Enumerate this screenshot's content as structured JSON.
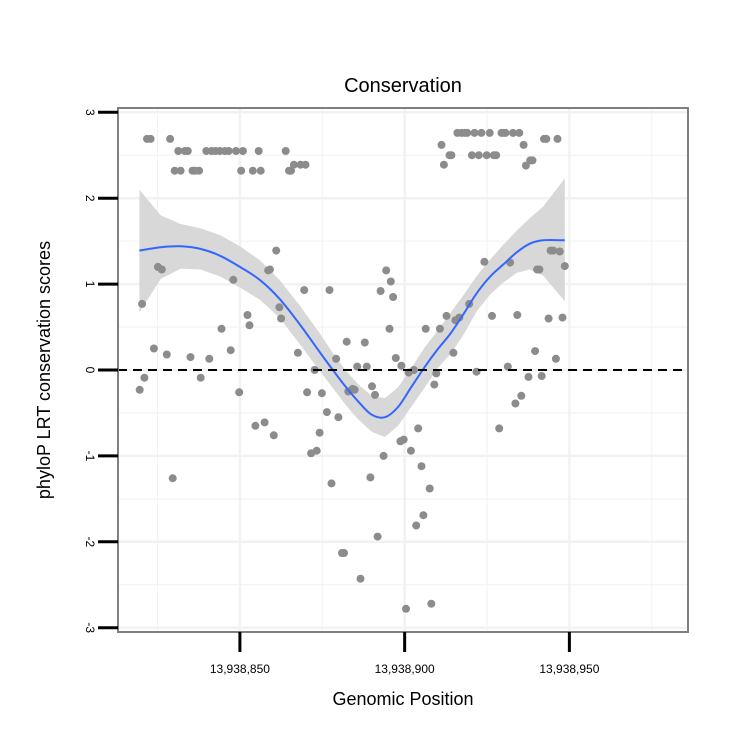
{
  "chart_data": {
    "type": "scatter",
    "title": "Conservation",
    "xlabel": "Genomic Position",
    "ylabel": "phyloP LRT conservation scores",
    "xlim": [
      13938813,
      13938986
    ],
    "ylim": [
      -3.05,
      3.05
    ],
    "x_ticks": [
      {
        "value": 13938850,
        "label": "13,938,850"
      },
      {
        "value": 13938900,
        "label": "13,938,900"
      },
      {
        "value": 13938950,
        "label": "13,938,950"
      }
    ],
    "y_ticks": [
      {
        "value": 3,
        "label": "3"
      },
      {
        "value": 2,
        "label": "2"
      },
      {
        "value": 1,
        "label": "1"
      },
      {
        "value": 0,
        "label": "0"
      },
      {
        "value": -1,
        "label": "-1"
      },
      {
        "value": -2,
        "label": "-2"
      },
      {
        "value": -3,
        "label": "-3"
      }
    ],
    "reference_line": {
      "y": 0,
      "style": "dashed",
      "color": "#000000"
    },
    "colors": {
      "points": "#8c8c8c",
      "smooth": "#3366ff",
      "ribbon": "#d4d4d4",
      "frame": "#7f7f7f",
      "grid": "#f2f2f2"
    },
    "series": [
      {
        "name": "phyloP",
        "points": [
          [
            13938819.6,
            -0.23
          ],
          [
            13938820.3,
            0.77
          ],
          [
            13938821.0,
            -0.09
          ],
          [
            13938821.8,
            2.69
          ],
          [
            13938822.9,
            2.69
          ],
          [
            13938823.9,
            0.25
          ],
          [
            13938825.1,
            1.2
          ],
          [
            13938826.3,
            1.17
          ],
          [
            13938827.8,
            0.18
          ],
          [
            13938828.8,
            2.69
          ],
          [
            13938829.6,
            -1.26
          ],
          [
            13938830.2,
            2.32
          ],
          [
            13938831.3,
            2.55
          ],
          [
            13938832.0,
            2.32
          ],
          [
            13938833.3,
            2.55
          ],
          [
            13938834.2,
            2.55
          ],
          [
            13938835.0,
            0.15
          ],
          [
            13938835.6,
            2.32
          ],
          [
            13938836.4,
            2.32
          ],
          [
            13938837.6,
            2.32
          ],
          [
            13938838.1,
            -0.09
          ],
          [
            13938839.8,
            2.55
          ],
          [
            13938840.7,
            0.13
          ],
          [
            13938841.4,
            2.55
          ],
          [
            13938842.6,
            2.55
          ],
          [
            13938843.9,
            2.55
          ],
          [
            13938844.4,
            0.48
          ],
          [
            13938845.4,
            2.55
          ],
          [
            13938846.6,
            2.55
          ],
          [
            13938847.2,
            0.23
          ],
          [
            13938848.0,
            1.05
          ],
          [
            13938848.8,
            2.55
          ],
          [
            13938849.8,
            -0.26
          ],
          [
            13938850.4,
            2.32
          ],
          [
            13938850.9,
            2.55
          ],
          [
            13938852.3,
            0.64
          ],
          [
            13938852.9,
            0.52
          ],
          [
            13938853.9,
            2.32
          ],
          [
            13938854.7,
            -0.65
          ],
          [
            13938855.7,
            2.55
          ],
          [
            13938856.3,
            2.32
          ],
          [
            13938857.5,
            -0.61
          ],
          [
            13938858.6,
            1.16
          ],
          [
            13938859.1,
            1.17
          ],
          [
            13938860.3,
            -0.76
          ],
          [
            13938861.0,
            1.39
          ],
          [
            13938862.0,
            0.73
          ],
          [
            13938862.5,
            0.6
          ],
          [
            13938863.9,
            2.55
          ],
          [
            13938864.9,
            2.32
          ],
          [
            13938865.5,
            2.32
          ],
          [
            13938866.4,
            2.39
          ],
          [
            13938867.6,
            0.2
          ],
          [
            13938868.4,
            2.39
          ],
          [
            13938869.5,
            0.93
          ],
          [
            13938869.9,
            2.39
          ],
          [
            13938870.4,
            -0.26
          ],
          [
            13938871.6,
            -0.97
          ],
          [
            13938872.7,
            0.0
          ],
          [
            13938873.3,
            -0.94
          ],
          [
            13938874.2,
            -0.73
          ],
          [
            13938874.9,
            -0.27
          ],
          [
            13938876.4,
            -0.49
          ],
          [
            13938877.2,
            0.93
          ],
          [
            13938877.8,
            -1.32
          ],
          [
            13938879.2,
            0.13
          ],
          [
            13938879.9,
            -0.55
          ],
          [
            13938881.0,
            -2.13
          ],
          [
            13938881.6,
            -2.13
          ],
          [
            13938882.4,
            0.33
          ],
          [
            13938882.9,
            -0.25
          ],
          [
            13938884.2,
            -0.22
          ],
          [
            13938884.8,
            -0.23
          ],
          [
            13938885.6,
            0.04
          ],
          [
            13938886.6,
            -2.43
          ],
          [
            13938887.9,
            0.32
          ],
          [
            13938888.5,
            0.04
          ],
          [
            13938889.6,
            -1.25
          ],
          [
            13938890.1,
            -0.19
          ],
          [
            13938891.0,
            -0.29
          ],
          [
            13938891.8,
            -1.94
          ],
          [
            13938892.7,
            0.92
          ],
          [
            13938893.6,
            -1.0
          ],
          [
            13938894.4,
            1.16
          ],
          [
            13938895.4,
            0.48
          ],
          [
            13938895.8,
            1.03
          ],
          [
            13938896.5,
            0.85
          ],
          [
            13938897.3,
            0.14
          ],
          [
            13938898.7,
            -0.83
          ],
          [
            13938899.0,
            0.05
          ],
          [
            13938899.7,
            -0.81
          ],
          [
            13938900.4,
            -2.78
          ],
          [
            13938901.2,
            -0.03
          ],
          [
            13938901.9,
            -0.94
          ],
          [
            13938902.8,
            0.0
          ],
          [
            13938903.5,
            -1.81
          ],
          [
            13938904.1,
            -0.68
          ],
          [
            13938905.1,
            -1.12
          ],
          [
            13938905.7,
            -1.69
          ],
          [
            13938906.4,
            0.48
          ],
          [
            13938907.6,
            -1.38
          ],
          [
            13938908.1,
            -2.72
          ],
          [
            13938909.0,
            -0.17
          ],
          [
            13938909.6,
            -0.04
          ],
          [
            13938910.7,
            0.48
          ],
          [
            13938911.2,
            2.62
          ],
          [
            13938911.9,
            2.39
          ],
          [
            13938912.7,
            0.63
          ],
          [
            13938913.6,
            2.5
          ],
          [
            13938914.2,
            2.5
          ],
          [
            13938914.8,
            0.2
          ],
          [
            13938915.4,
            0.58
          ],
          [
            13938916.0,
            2.76
          ],
          [
            13938916.6,
            0.61
          ],
          [
            13938917.3,
            2.76
          ],
          [
            13938918.2,
            2.76
          ],
          [
            13938919.0,
            2.76
          ],
          [
            13938919.6,
            0.77
          ],
          [
            13938920.4,
            2.5
          ],
          [
            13938921.2,
            2.76
          ],
          [
            13938921.8,
            -0.02
          ],
          [
            13938922.5,
            2.5
          ],
          [
            13938923.3,
            2.76
          ],
          [
            13938924.2,
            1.26
          ],
          [
            13938924.9,
            2.5
          ],
          [
            13938925.8,
            2.76
          ],
          [
            13938926.5,
            0.63
          ],
          [
            13938927.1,
            2.5
          ],
          [
            13938927.8,
            2.5
          ],
          [
            13938928.7,
            -0.68
          ],
          [
            13938929.4,
            2.76
          ],
          [
            13938930.0,
            2.76
          ],
          [
            13938930.6,
            2.76
          ],
          [
            13938931.3,
            0.04
          ],
          [
            13938932.0,
            1.25
          ],
          [
            13938932.9,
            2.76
          ],
          [
            13938933.6,
            -0.39
          ],
          [
            13938934.2,
            0.64
          ],
          [
            13938934.8,
            2.76
          ],
          [
            13938935.4,
            -0.3
          ],
          [
            13938936.1,
            2.62
          ],
          [
            13938936.8,
            2.38
          ],
          [
            13938937.6,
            -0.08
          ],
          [
            13938938.1,
            2.44
          ],
          [
            13938938.8,
            2.44
          ],
          [
            13938939.6,
            0.22
          ],
          [
            13938940.2,
            1.17
          ],
          [
            13938940.9,
            1.17
          ],
          [
            13938941.6,
            -0.07
          ],
          [
            13938942.3,
            2.69
          ],
          [
            13938943.0,
            2.69
          ],
          [
            13938943.7,
            0.6
          ],
          [
            13938944.3,
            1.39
          ],
          [
            13938945.1,
            1.39
          ],
          [
            13938945.9,
            0.13
          ],
          [
            13938946.4,
            2.69
          ],
          [
            13938947.1,
            1.38
          ],
          [
            13938947.9,
            0.61
          ],
          [
            13938948.6,
            1.21
          ]
        ]
      }
    ],
    "smooth": {
      "method": "loess",
      "x": [
        13938819.5,
        13938826,
        13938832,
        13938838,
        13938844,
        13938850,
        13938856,
        13938862,
        13938868,
        13938874,
        13938878,
        13938882,
        13938886,
        13938890,
        13938894,
        13938898,
        13938902,
        13938906,
        13938910,
        13938914,
        13938918,
        13938922,
        13938926,
        13938930,
        13938934,
        13938938,
        13938942,
        13938948.6
      ],
      "y": [
        1.39,
        1.43,
        1.44,
        1.41,
        1.33,
        1.2,
        1.05,
        0.83,
        0.54,
        0.22,
        0.01,
        -0.19,
        -0.37,
        -0.52,
        -0.55,
        -0.43,
        -0.2,
        0.03,
        0.24,
        0.43,
        0.66,
        0.9,
        1.09,
        1.23,
        1.37,
        1.47,
        1.51,
        1.51
      ],
      "upper": [
        2.1,
        1.8,
        1.7,
        1.65,
        1.57,
        1.44,
        1.28,
        1.05,
        0.76,
        0.44,
        0.21,
        0.0,
        -0.17,
        -0.3,
        -0.33,
        -0.2,
        0.02,
        0.26,
        0.46,
        0.67,
        0.88,
        1.1,
        1.29,
        1.46,
        1.62,
        1.77,
        1.9,
        2.23
      ],
      "lower": [
        0.67,
        1.06,
        1.18,
        1.17,
        1.09,
        0.96,
        0.82,
        0.61,
        0.31,
        0.0,
        -0.2,
        -0.4,
        -0.58,
        -0.72,
        -0.78,
        -0.65,
        -0.43,
        -0.21,
        0.02,
        0.19,
        0.42,
        0.69,
        0.88,
        1.02,
        1.13,
        1.17,
        1.1,
        0.8
      ]
    }
  }
}
